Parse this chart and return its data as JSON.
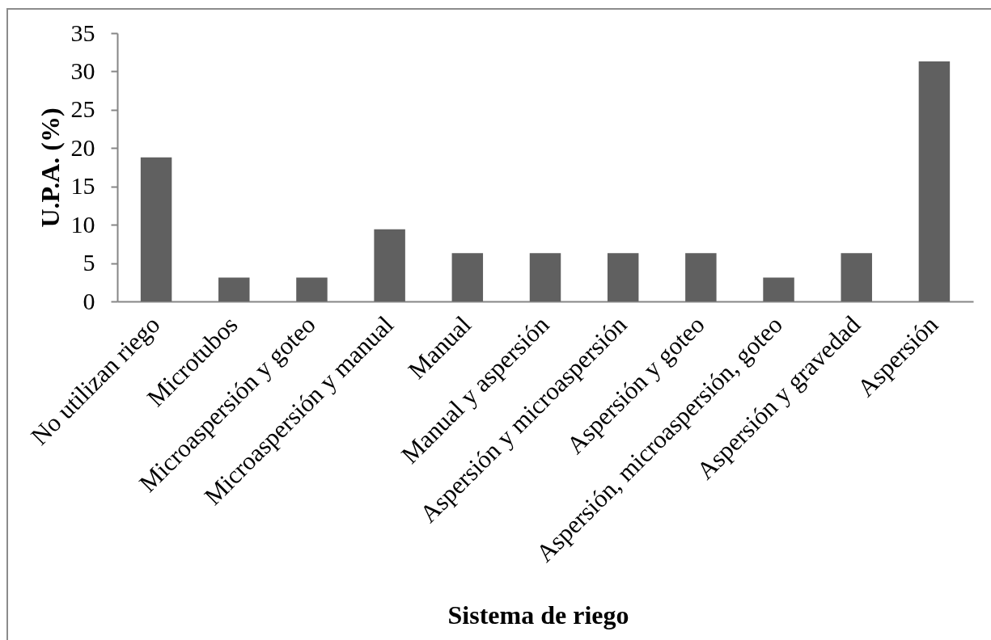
{
  "chart_data": {
    "type": "bar",
    "xlabel": "Sistema de riego",
    "ylabel": "U.P.A. (%)",
    "categories": [
      "No utilizan riego",
      "Microtubos",
      "Microaspersión y goteo",
      "Microaspersión y manual",
      "Manual",
      "Manual y aspersión",
      "Aspersión y microaspersión",
      "Aspersión y goteo",
      "Aspersión, microaspersión, goteo",
      "Aspersión y gravedad",
      "Aspersión"
    ],
    "values": [
      18.8,
      3.1,
      3.1,
      9.4,
      6.3,
      6.3,
      6.3,
      6.3,
      3.1,
      6.3,
      31.3
    ],
    "color": "#606060",
    "ylim": [
      0,
      35
    ],
    "yticks": [
      0,
      5,
      10,
      15,
      20,
      25,
      30,
      35
    ],
    "grid": false
  }
}
